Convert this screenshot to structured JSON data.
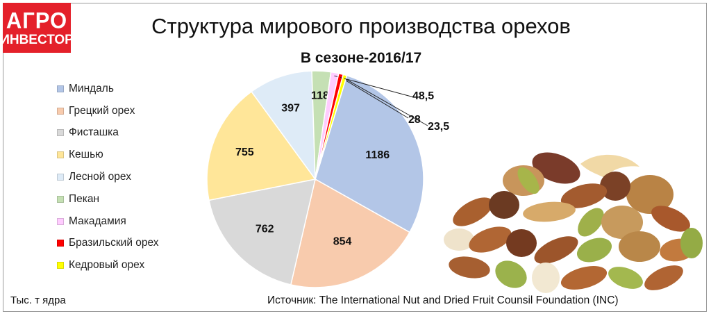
{
  "logo": {
    "line1": "АГРО",
    "line2": "ИНВЕСТОР"
  },
  "chart_data": {
    "type": "pie",
    "title": "Структура мирового производства орехов",
    "subtitle": "В сезоне-2016/17",
    "unit": "Тыс. т ядра",
    "source": "Источник: The International Nut and Dried Fruit Counsil Foundation (INC)",
    "legend_position": "left",
    "slices": [
      {
        "name": "Миндаль",
        "value": 1186,
        "label": "1186",
        "color": "#b3c6e7"
      },
      {
        "name": "Грецкий орех",
        "value": 854,
        "label": "854",
        "color": "#f8cbad"
      },
      {
        "name": "Фисташка",
        "value": 762,
        "label": "762",
        "color": "#d9d9d9"
      },
      {
        "name": "Кешью",
        "value": 755,
        "label": "755",
        "color": "#ffe699"
      },
      {
        "name": "Лесной орех",
        "value": 397,
        "label": "397",
        "color": "#deebf7"
      },
      {
        "name": "Пекан",
        "value": 118,
        "label": "118",
        "color": "#c5e0b4"
      },
      {
        "name": "Макадамия",
        "value": 48.5,
        "label": "48,5",
        "color": "#ffccff"
      },
      {
        "name": "Бразильский орех",
        "value": 28,
        "label": "28",
        "color": "#ff0000"
      },
      {
        "name": "Кедровый орех",
        "value": 23.5,
        "label": "23,5",
        "color": "#ffff00"
      }
    ]
  }
}
